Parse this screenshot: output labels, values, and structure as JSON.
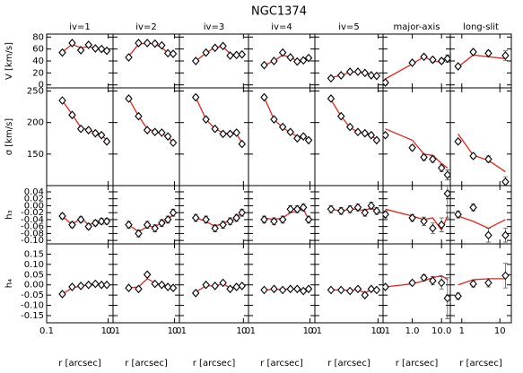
{
  "title": "NGC1374",
  "chart_data": {
    "type": "scatter",
    "log_x": true,
    "point_color": "#000000",
    "model_color": "#e8231e",
    "rows": [
      {
        "ylabel": "V [km/s]",
        "ylim": [
          -5,
          85
        ],
        "yticks": [
          0,
          20,
          40,
          60,
          80
        ]
      },
      {
        "ylabel": "σ [km/s]",
        "ylim": [
          100,
          255
        ],
        "yticks": [
          150,
          200,
          250
        ]
      },
      {
        "ylabel": "h₃",
        "ylim": [
          -0.11,
          0.058
        ],
        "yticks": [
          0.04,
          0.02,
          {
            "value": 0,
            "label": "0.00"
          },
          -0.02,
          -0.04,
          -0.06,
          -0.08,
          {
            "value": -0.1,
            "label": "-0.10"
          }
        ]
      },
      {
        "ylabel": "h₄",
        "ylim": [
          -0.185,
          0.2
        ],
        "yticks": [
          0.15,
          {
            "value": 0.1,
            "label": "0.10"
          },
          0.05,
          {
            "value": 0,
            "label": "0.00"
          },
          -0.05,
          {
            "value": -0.1,
            "label": "-0.10"
          },
          -0.15
        ]
      }
    ],
    "columns": [
      {
        "title": "iv=1",
        "xlabel": "r [arcsec]",
        "xlim": [
          0.1,
          1.2
        ],
        "xticks": [
          0.1,
          {
            "value": 1,
            "label": "1.0"
          }
        ],
        "x": [
          0.18,
          0.26,
          0.36,
          0.48,
          0.62,
          0.78,
          0.95
        ],
        "panels": [
          {
            "values": [
              54,
              70,
              58,
              67,
              61,
              60,
              57
            ],
            "errors": [
              2,
              2,
              2,
              2,
              2,
              2,
              2
            ],
            "model": [
              55,
              68,
              62,
              64,
              62,
              60,
              58
            ]
          },
          {
            "values": [
              235,
              212,
              190,
              188,
              183,
              180,
              170
            ],
            "errors": [
              3,
              3,
              3,
              3,
              3,
              3,
              3
            ],
            "model": [
              235,
              213,
              192,
              188,
              184,
              180,
              172
            ]
          },
          {
            "values": [
              -0.03,
              -0.055,
              -0.04,
              -0.06,
              -0.05,
              -0.045,
              -0.045
            ],
            "errors": [
              0.008,
              0.008,
              0.008,
              0.008,
              0.008,
              0.008,
              0.008
            ],
            "model": [
              -0.03,
              -0.055,
              -0.035,
              -0.055,
              -0.05,
              -0.045,
              -0.045
            ]
          },
          {
            "values": [
              -0.045,
              -0.01,
              -0.005,
              0.0,
              0.005,
              0.0,
              0.0
            ],
            "errors": [
              0.008,
              0.008,
              0.008,
              0.008,
              0.008,
              0.008,
              0.008
            ],
            "model": [
              -0.045,
              -0.015,
              -0.005,
              0.0,
              0.0,
              0.005,
              0.0
            ]
          }
        ]
      },
      {
        "title": "iv=2",
        "xlabel": "r [arcsec]",
        "xlim": [
          0.1,
          1.2
        ],
        "xticks": [
          0.1,
          {
            "value": 1,
            "label": "1.0"
          }
        ],
        "x": [
          0.18,
          0.26,
          0.36,
          0.48,
          0.62,
          0.78,
          0.95
        ],
        "panels": [
          {
            "values": [
              46,
              70,
              70,
              69,
              66,
              53,
              52
            ],
            "errors": [
              2,
              2,
              2,
              2,
              2,
              2,
              2
            ],
            "model": [
              48,
              68,
              70,
              68,
              62,
              54,
              52
            ]
          },
          {
            "values": [
              238,
              210,
              188,
              185,
              184,
              178,
              168
            ],
            "errors": [
              3,
              3,
              3,
              3,
              3,
              3,
              3
            ],
            "model": [
              238,
              210,
              190,
              186,
              182,
              178,
              168
            ]
          },
          {
            "values": [
              -0.055,
              -0.08,
              -0.055,
              -0.065,
              -0.05,
              -0.04,
              -0.02
            ],
            "errors": [
              0.01,
              0.01,
              0.01,
              0.01,
              0.01,
              0.01,
              0.01
            ],
            "model": [
              -0.055,
              -0.075,
              -0.06,
              -0.06,
              -0.05,
              -0.04,
              -0.025
            ]
          },
          {
            "values": [
              -0.015,
              -0.02,
              0.05,
              0.005,
              0.0,
              -0.01,
              -0.015
            ],
            "errors": [
              0.008,
              0.008,
              0.008,
              0.008,
              0.008,
              0.008,
              0.008
            ],
            "model": [
              -0.015,
              -0.01,
              0.03,
              0.01,
              0.0,
              -0.01,
              -0.015
            ]
          }
        ]
      },
      {
        "title": "iv=3",
        "xlabel": "r [arcsec]",
        "xlim": [
          0.1,
          1.2
        ],
        "xticks": [
          0.1,
          {
            "value": 1,
            "label": "1.0"
          }
        ],
        "x": [
          0.18,
          0.26,
          0.36,
          0.48,
          0.62,
          0.78,
          0.95
        ],
        "panels": [
          {
            "values": [
              40,
              54,
              62,
              65,
              49,
              50,
              51
            ],
            "errors": [
              2,
              2,
              2,
              2,
              2,
              2,
              2
            ],
            "model": [
              40,
              53,
              63,
              64,
              52,
              50,
              50
            ]
          },
          {
            "values": [
              240,
              205,
              190,
              182,
              182,
              184,
              166
            ],
            "errors": [
              3,
              3,
              3,
              3,
              3,
              3,
              3
            ],
            "model": [
              240,
              205,
              190,
              184,
              182,
              182,
              168
            ]
          },
          {
            "values": [
              -0.035,
              -0.04,
              -0.065,
              -0.055,
              -0.045,
              -0.035,
              -0.02
            ],
            "errors": [
              0.01,
              0.01,
              0.01,
              0.01,
              0.01,
              0.01,
              0.01
            ],
            "model": [
              -0.035,
              -0.045,
              -0.06,
              -0.05,
              -0.045,
              -0.035,
              -0.02
            ]
          },
          {
            "values": [
              -0.04,
              0.0,
              -0.005,
              0.01,
              -0.02,
              -0.01,
              -0.005
            ],
            "errors": [
              0.008,
              0.008,
              0.008,
              0.008,
              0.008,
              0.008,
              0.008
            ],
            "model": [
              -0.035,
              -0.005,
              -0.005,
              0.005,
              -0.015,
              -0.01,
              -0.005
            ]
          }
        ]
      },
      {
        "title": "iv=4",
        "xlabel": "r [arcsec]",
        "xlim": [
          0.1,
          1.2
        ],
        "xticks": [
          0.1,
          {
            "value": 1,
            "label": "1.0"
          }
        ],
        "x": [
          0.18,
          0.26,
          0.36,
          0.48,
          0.62,
          0.78,
          0.95
        ],
        "panels": [
          {
            "values": [
              33,
              40,
              54,
              46,
              39,
              41,
              45
            ],
            "errors": [
              2,
              2,
              2,
              2,
              2,
              2,
              2
            ],
            "model": [
              33,
              40,
              50,
              46,
              40,
              41,
              44
            ]
          },
          {
            "values": [
              240,
              205,
              193,
              185,
              175,
              178,
              172
            ],
            "errors": [
              3,
              3,
              3,
              3,
              3,
              3,
              3
            ],
            "model": [
              240,
              205,
              192,
              184,
              178,
              178,
              172
            ]
          },
          {
            "values": [
              -0.04,
              -0.045,
              -0.04,
              -0.01,
              -0.01,
              -0.005,
              -0.04
            ],
            "errors": [
              0.01,
              0.01,
              0.01,
              0.01,
              0.01,
              0.01,
              0.01
            ],
            "model": [
              -0.035,
              -0.04,
              -0.035,
              -0.02,
              -0.015,
              -0.01,
              -0.04
            ]
          },
          {
            "values": [
              -0.025,
              -0.02,
              -0.025,
              -0.02,
              -0.02,
              -0.03,
              -0.02
            ],
            "errors": [
              0.008,
              0.008,
              0.008,
              0.008,
              0.008,
              0.008,
              0.008
            ],
            "model": [
              -0.025,
              -0.022,
              -0.022,
              -0.02,
              -0.022,
              -0.025,
              -0.02
            ]
          }
        ]
      },
      {
        "title": "iv=5",
        "xlabel": "r [arcsec]",
        "xlim": [
          0.1,
          1.2
        ],
        "xticks": [
          0.1,
          {
            "value": 1,
            "label": "1.0"
          }
        ],
        "x": [
          0.18,
          0.26,
          0.36,
          0.48,
          0.62,
          0.78,
          0.95
        ],
        "panels": [
          {
            "values": [
              11,
              16,
              22,
              22,
              20,
              16,
              15
            ],
            "errors": [
              2,
              2,
              2,
              2,
              2,
              2,
              2
            ],
            "model": [
              12,
              16,
              21,
              22,
              20,
              17,
              15
            ]
          },
          {
            "values": [
              238,
              210,
              193,
              185,
              183,
              180,
              172
            ],
            "errors": [
              3,
              3,
              3,
              3,
              3,
              3,
              3
            ],
            "model": [
              236,
              210,
              192,
              185,
              183,
              180,
              172
            ]
          },
          {
            "values": [
              -0.01,
              -0.015,
              -0.01,
              -0.005,
              -0.02,
              0.0,
              -0.015
            ],
            "errors": [
              0.01,
              0.01,
              0.01,
              0.01,
              0.01,
              0.01,
              0.01
            ],
            "model": [
              -0.01,
              -0.015,
              -0.01,
              -0.01,
              -0.015,
              -0.005,
              -0.015
            ]
          },
          {
            "values": [
              -0.025,
              -0.025,
              -0.03,
              -0.02,
              -0.05,
              -0.02,
              -0.025
            ],
            "errors": [
              0.008,
              0.008,
              0.008,
              0.008,
              0.008,
              0.008,
              0.008
            ],
            "model": [
              -0.025,
              -0.025,
              -0.027,
              -0.022,
              -0.04,
              -0.022,
              -0.025
            ]
          }
        ]
      },
      {
        "title": "major-axis",
        "xlabel": "r [arcsec]",
        "xlim": [
          0.1,
          20
        ],
        "xticks": [
          0.1,
          {
            "value": 1,
            "label": "1.0"
          },
          {
            "value": 10,
            "label": "10.0"
          }
        ],
        "x": [
          0.12,
          1.0,
          2.5,
          5.0,
          10.0,
          16.0
        ],
        "panels": [
          {
            "values": [
              4,
              37,
              47,
              42,
              40,
              44
            ],
            "errors": [
              2,
              3,
              3,
              4,
              4,
              6
            ],
            "model": [
              10,
              35,
              47,
              40,
              38,
              45
            ]
          },
          {
            "values": [
              180,
              160,
              145,
              142,
              128,
              117
            ],
            "errors": [
              3,
              4,
              5,
              5,
              6,
              8
            ],
            "model": [
              190,
              172,
              150,
              148,
              135,
              128
            ]
          },
          {
            "values": [
              -0.025,
              -0.035,
              -0.045,
              -0.065,
              -0.055,
              0.035
            ],
            "errors": [
              0.01,
              0.01,
              0.012,
              0.015,
              0.02,
              0.07
            ],
            "model": [
              -0.01,
              -0.03,
              -0.04,
              -0.035,
              -0.07,
              -0.03
            ]
          },
          {
            "values": [
              -0.01,
              0.01,
              0.035,
              0.02,
              0.01,
              -0.065
            ],
            "errors": [
              0.01,
              0.01,
              0.015,
              0.02,
              0.03,
              0.1
            ],
            "model": [
              -0.01,
              0.005,
              0.02,
              0.035,
              0.045,
              0.025
            ]
          }
        ]
      },
      {
        "title": "long-slit",
        "xlabel": "r [arcsec]",
        "xlim": [
          0.5,
          20
        ],
        "xticks": [
          1,
          10
        ],
        "x": [
          0.8,
          2.0,
          5.0,
          14.0
        ],
        "panels": [
          {
            "values": [
              31,
              55,
              53,
              49
            ],
            "errors": [
              3,
              3,
              4,
              8
            ],
            "model": [
              30,
              50,
              47,
              44
            ]
          },
          {
            "values": [
              170,
              147,
              142,
              106
            ],
            "errors": [
              3,
              4,
              5,
              8
            ],
            "model": [
              182,
              148,
              140,
              122
            ]
          },
          {
            "values": [
              -0.025,
              -0.005,
              -0.085,
              -0.085
            ],
            "errors": [
              0.01,
              0.01,
              0.02,
              0.02
            ],
            "model": [
              -0.03,
              -0.045,
              -0.065,
              -0.04
            ]
          },
          {
            "values": [
              -0.055,
              0.005,
              0.01,
              0.045
            ],
            "errors": [
              0.015,
              0.015,
              0.02,
              0.06
            ],
            "model": [
              0.0,
              0.025,
              0.03,
              0.03
            ]
          }
        ]
      }
    ]
  }
}
